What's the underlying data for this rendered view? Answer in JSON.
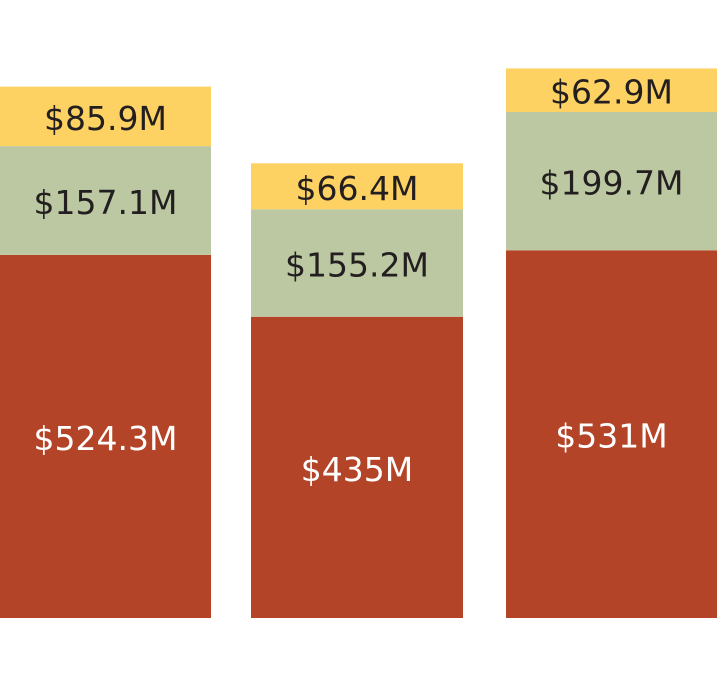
{
  "chart_data": {
    "type": "bar",
    "stacked": true,
    "categories": [
      "",
      "",
      ""
    ],
    "series": [
      {
        "values": [
          524.3,
          435,
          531
        ],
        "labels": [
          "$524.3M",
          "$435M",
          "$531M"
        ],
        "color": "#B34427",
        "label_color": "#FFFFFF"
      },
      {
        "values": [
          157.1,
          155.2,
          199.7
        ],
        "labels": [
          "$157.1M",
          "$155.2M",
          "$199.7M"
        ],
        "color": "#BCC8A1",
        "label_color": "#231F20"
      },
      {
        "values": [
          85.9,
          66.4,
          62.9
        ],
        "labels": [
          "$85.9M",
          "$66.4M",
          "$62.9M"
        ],
        "color": "#FDD162",
        "label_color": "#231F20"
      }
    ],
    "unit": "$M",
    "title": "",
    "xlabel": "",
    "ylabel": "",
    "ylim": [
      0,
      1000
    ],
    "grid": false,
    "legend": "none"
  }
}
